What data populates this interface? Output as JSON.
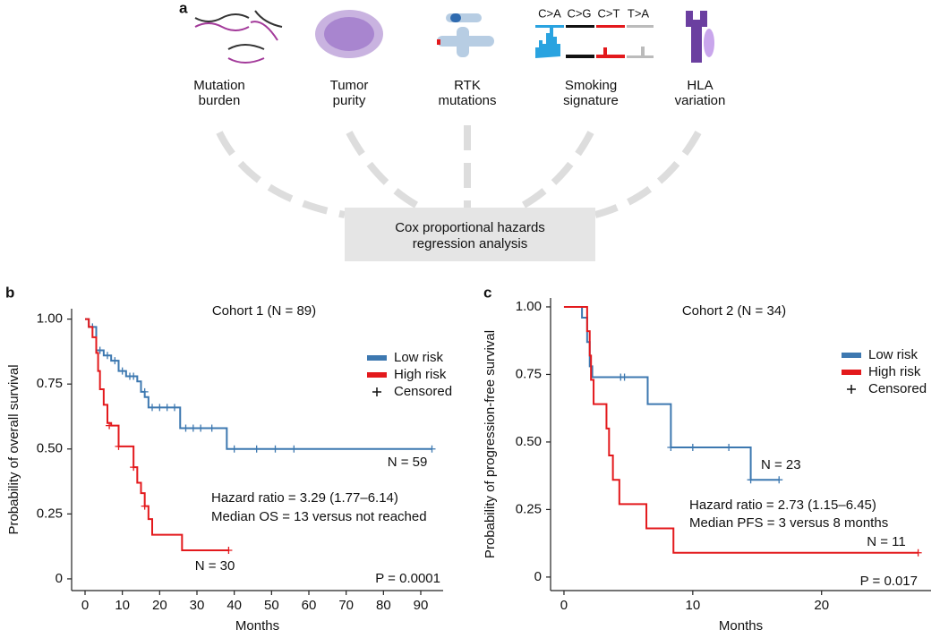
{
  "panel_a": {
    "letter": "a",
    "factors": [
      [
        "Mutation",
        "burden"
      ],
      [
        "Tumor",
        "purity"
      ],
      [
        "RTK",
        "mutations"
      ],
      [
        "Smoking",
        "signature"
      ],
      [
        "HLA",
        "variation"
      ]
    ],
    "signature_classes": [
      "C>A",
      "C>G",
      "C>T",
      "T>A"
    ],
    "box": [
      "Cox proportional hazards",
      "regression analysis"
    ]
  },
  "chart_data": [
    {
      "type": "survival",
      "letter": "b",
      "title": "Cohort 1 (N = 89)",
      "x_label": "Months",
      "y_label": "Probability of overall survival",
      "xlim": [
        -3.6,
        96
      ],
      "ylim": [
        -0.045,
        1.04
      ],
      "xticks": [
        0,
        10,
        20,
        30,
        40,
        50,
        60,
        70,
        80,
        90
      ],
      "yticks": [
        0,
        0.25,
        {
          "value": 0.5,
          "label": "0.50"
        },
        0.75,
        {
          "value": 1,
          "label": "1.00"
        }
      ],
      "censored_label": "Censored",
      "series": [
        {
          "name": "Low risk",
          "color": "#3d78b0",
          "x": [
            0,
            1,
            3,
            5,
            7,
            9,
            11,
            14,
            15,
            16,
            17,
            25.5,
            38,
            93
          ],
          "values": [
            1,
            0.97,
            0.88,
            0.86,
            0.84,
            0.8,
            0.78,
            0.76,
            0.72,
            0.7,
            0.66,
            0.58,
            0.5,
            0.5
          ],
          "censored": {
            "x": [
              2,
              4,
              6,
              8,
              10,
              12,
              13,
              16,
              18,
              20,
              22,
              24,
              27,
              29,
              31,
              34,
              40,
              46,
              51,
              56,
              93
            ],
            "values": [
              0.97,
              0.88,
              0.86,
              0.84,
              0.8,
              0.78,
              0.78,
              0.72,
              0.66,
              0.66,
              0.66,
              0.66,
              0.58,
              0.58,
              0.58,
              0.58,
              0.5,
              0.5,
              0.5,
              0.5,
              0.5
            ]
          }
        },
        {
          "name": "High risk",
          "color": "#e3191c",
          "x": [
            0,
            1,
            2,
            3,
            3.5,
            4,
            5,
            6,
            7,
            9,
            13,
            14,
            15,
            16,
            17,
            18,
            26,
            38.5
          ],
          "values": [
            1,
            0.97,
            0.93,
            0.87,
            0.8,
            0.73,
            0.67,
            0.6,
            0.59,
            0.51,
            0.43,
            0.37,
            0.33,
            0.28,
            0.23,
            0.17,
            0.11,
            0.11
          ],
          "censored": {
            "x": [
              6.5,
              9,
              13,
              16,
              38.5
            ],
            "values": [
              0.59,
              0.51,
              0.43,
              0.28,
              0.11
            ]
          }
        }
      ],
      "annotations": [
        "N = 59",
        "N = 30",
        "Hazard ratio = 3.29 (1.77–6.14)",
        "Median OS = 13 versus not reached",
        "P = 0.0001"
      ]
    },
    {
      "type": "survival",
      "letter": "c",
      "title": "Cohort 2 (N = 34)",
      "x_label": "Months",
      "y_label": "Probability of progression-free survival",
      "xlim": [
        -1.04,
        28.5
      ],
      "ylim": [
        -0.05,
        1.033
      ],
      "xticks": [
        0,
        10,
        20
      ],
      "yticks": [
        0,
        0.25,
        {
          "value": 0.5,
          "label": "0.50"
        },
        0.75,
        {
          "value": 1,
          "label": "1.00"
        }
      ],
      "censored_label": "Censored",
      "series": [
        {
          "name": "Low risk",
          "color": "#3d78b0",
          "x": [
            0,
            1.4,
            1.8,
            2,
            2.2,
            6.5,
            8.3,
            14.5,
            16.7
          ],
          "values": [
            1,
            0.96,
            0.87,
            0.78,
            0.74,
            0.64,
            0.48,
            0.36,
            0.36
          ],
          "censored": {
            "x": [
              4.4,
              4.7,
              8.3,
              10,
              12.8,
              14.5,
              16.7
            ],
            "values": [
              0.74,
              0.74,
              0.48,
              0.48,
              0.48,
              0.36,
              0.36
            ]
          }
        },
        {
          "name": "High risk",
          "color": "#e3191c",
          "x": [
            0,
            1.8,
            2,
            2.1,
            2.3,
            3.3,
            3.5,
            3.8,
            4.3,
            6.4,
            8.5,
            27.5
          ],
          "values": [
            1,
            0.91,
            0.82,
            0.73,
            0.64,
            0.55,
            0.45,
            0.36,
            0.27,
            0.18,
            0.09,
            0.09
          ],
          "censored": {
            "x": [
              27.5
            ],
            "values": [
              0.09
            ]
          }
        }
      ],
      "annotations": [
        "N = 23",
        "N = 11",
        "Hazard ratio = 2.73 (1.15–6.45)",
        "Median PFS = 3 versus 8 months",
        "P = 0.017"
      ]
    }
  ]
}
